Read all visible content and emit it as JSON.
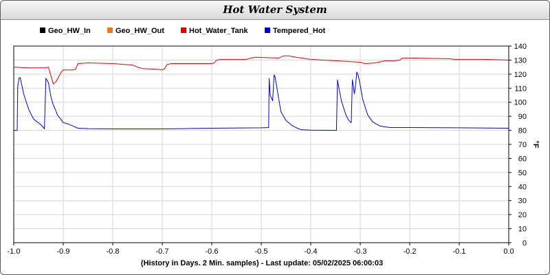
{
  "window": {
    "title": "Hot Water System"
  },
  "footer": {
    "text": "(History in Days. 2 Min. samples) - Last update: 05/02/2025 06:00:03"
  },
  "chart_data": {
    "type": "line",
    "title": "Hot Water System",
    "xlabel": "(History in Days. 2 Min. samples) - Last update: 05/02/2025 06:00:03",
    "ylabel": "°F",
    "xlim": [
      -1.0,
      0.0
    ],
    "ylim": [
      0,
      140
    ],
    "x_ticks": [
      "-1.0",
      "-0.9",
      "-0.8",
      "-0.7",
      "-0.6",
      "-0.5",
      "-0.4",
      "-0.3",
      "-0.2",
      "-0.1",
      "0.0"
    ],
    "y_ticks": [
      "0",
      "10",
      "20",
      "30",
      "40",
      "50",
      "60",
      "70",
      "80",
      "90",
      "100",
      "110",
      "120",
      "130",
      "140"
    ],
    "grid": true,
    "legend_position": "top",
    "series": [
      {
        "name": "Geo_HW_In",
        "color": "#000000",
        "points": []
      },
      {
        "name": "Geo_HW_Out",
        "color": "#e87722",
        "points": []
      },
      {
        "name": "Hot_Water_Tank",
        "color": "#e00000",
        "points": [
          [
            -1.0,
            125
          ],
          [
            -0.97,
            124.5
          ],
          [
            -0.935,
            124.5
          ],
          [
            -0.93,
            125
          ],
          [
            -0.925,
            119
          ],
          [
            -0.92,
            113
          ],
          [
            -0.915,
            114.5
          ],
          [
            -0.91,
            117.5
          ],
          [
            -0.905,
            121
          ],
          [
            -0.9,
            123
          ],
          [
            -0.88,
            123
          ],
          [
            -0.875,
            123.5
          ],
          [
            -0.87,
            127.5
          ],
          [
            -0.85,
            128
          ],
          [
            -0.8,
            127.5
          ],
          [
            -0.76,
            126.5
          ],
          [
            -0.75,
            125
          ],
          [
            -0.74,
            124
          ],
          [
            -0.71,
            123.5
          ],
          [
            -0.7,
            123
          ],
          [
            -0.695,
            124
          ],
          [
            -0.69,
            127
          ],
          [
            -0.68,
            127.5
          ],
          [
            -0.6,
            127.5
          ],
          [
            -0.595,
            128
          ],
          [
            -0.59,
            130
          ],
          [
            -0.58,
            130.5
          ],
          [
            -0.53,
            130.5
          ],
          [
            -0.52,
            131.5
          ],
          [
            -0.51,
            132
          ],
          [
            -0.465,
            131.5
          ],
          [
            -0.455,
            133
          ],
          [
            -0.445,
            133
          ],
          [
            -0.43,
            132
          ],
          [
            -0.4,
            130.5
          ],
          [
            -0.35,
            129.5
          ],
          [
            -0.3,
            128.5
          ],
          [
            -0.29,
            127.5
          ],
          [
            -0.27,
            128
          ],
          [
            -0.25,
            129.5
          ],
          [
            -0.23,
            129.5
          ],
          [
            -0.22,
            130
          ],
          [
            -0.215,
            131.5
          ],
          [
            -0.2,
            131.5
          ],
          [
            -0.12,
            131
          ],
          [
            -0.11,
            130.5
          ],
          [
            -0.05,
            130.5
          ],
          [
            0.0,
            130
          ]
        ]
      },
      {
        "name": "Tempered_Hot",
        "color": "#0000d0",
        "points": [
          [
            -1.0,
            80
          ],
          [
            -0.993,
            80
          ],
          [
            -0.992,
            111
          ],
          [
            -0.989,
            117.5
          ],
          [
            -0.987,
            117.5
          ],
          [
            -0.98,
            106
          ],
          [
            -0.97,
            95
          ],
          [
            -0.96,
            88
          ],
          [
            -0.945,
            84
          ],
          [
            -0.94,
            82
          ],
          [
            -0.938,
            81
          ],
          [
            -0.935,
            117
          ],
          [
            -0.93,
            114
          ],
          [
            -0.925,
            104
          ],
          [
            -0.92,
            98
          ],
          [
            -0.915,
            94
          ],
          [
            -0.912,
            91
          ],
          [
            -0.91,
            90
          ],
          [
            -0.905,
            88
          ],
          [
            -0.9,
            85.5
          ],
          [
            -0.89,
            84.5
          ],
          [
            -0.88,
            83
          ],
          [
            -0.87,
            81.5
          ],
          [
            -0.85,
            81.2
          ],
          [
            -0.8,
            81
          ],
          [
            -0.7,
            81
          ],
          [
            -0.6,
            81.5
          ],
          [
            -0.5,
            81.8
          ],
          [
            -0.485,
            82
          ],
          [
            -0.484,
            117
          ],
          [
            -0.482,
            105
          ],
          [
            -0.477,
            101
          ],
          [
            -0.474,
            119.5
          ],
          [
            -0.472,
            118
          ],
          [
            -0.465,
            103
          ],
          [
            -0.46,
            93
          ],
          [
            -0.45,
            87
          ],
          [
            -0.44,
            84
          ],
          [
            -0.43,
            82
          ],
          [
            -0.42,
            80.5
          ],
          [
            -0.4,
            80.2
          ],
          [
            -0.35,
            80
          ],
          [
            -0.348,
            80
          ],
          [
            -0.346,
            116
          ],
          [
            -0.343,
            110
          ],
          [
            -0.338,
            101
          ],
          [
            -0.33,
            92
          ],
          [
            -0.325,
            88
          ],
          [
            -0.32,
            86
          ],
          [
            -0.318,
            85.5
          ],
          [
            -0.316,
            116
          ],
          [
            -0.314,
            112
          ],
          [
            -0.312,
            106
          ],
          [
            -0.31,
            110
          ],
          [
            -0.307,
            121.5
          ],
          [
            -0.304,
            119
          ],
          [
            -0.3,
            112
          ],
          [
            -0.295,
            102
          ],
          [
            -0.285,
            91
          ],
          [
            -0.275,
            86
          ],
          [
            -0.26,
            83
          ],
          [
            -0.24,
            82
          ],
          [
            -0.2,
            82
          ],
          [
            -0.1,
            81.8
          ],
          [
            0.0,
            81.5
          ]
        ]
      }
    ]
  }
}
